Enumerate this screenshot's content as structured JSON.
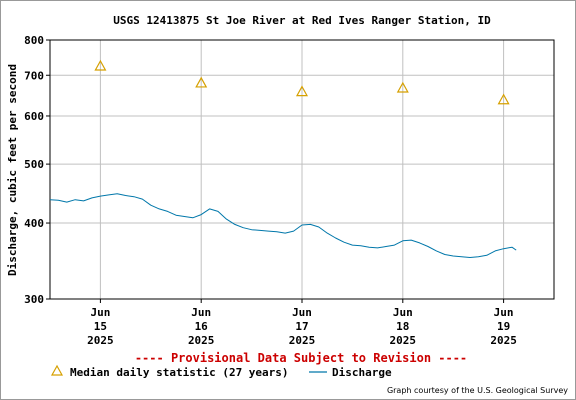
{
  "chart_data": {
    "type": "line",
    "title": "USGS 12413875 St Joe River at Red Ives Ranger Station, ID",
    "ylabel": "Discharge, cubic feet per second",
    "y_scale": "log",
    "ylim": [
      300,
      800
    ],
    "y_ticks": [
      {
        "value": 300,
        "label": "300"
      },
      {
        "value": 400,
        "label": "400"
      },
      {
        "value": 500,
        "label": "500"
      },
      {
        "value": 600,
        "label": "600"
      },
      {
        "value": 700,
        "label": "700"
      },
      {
        "value": 800,
        "label": "800"
      }
    ],
    "xlim": [
      "2025-06-14T12:00",
      "2025-06-19T12:00"
    ],
    "x_ticks": [
      {
        "value": "2025-06-15T00:00",
        "label_month": "Jun",
        "label_day": "15",
        "label_year": "2025"
      },
      {
        "value": "2025-06-16T00:00",
        "label_month": "Jun",
        "label_day": "16",
        "label_year": "2025"
      },
      {
        "value": "2025-06-17T00:00",
        "label_month": "Jun",
        "label_day": "17",
        "label_year": "2025"
      },
      {
        "value": "2025-06-18T00:00",
        "label_month": "Jun",
        "label_day": "18",
        "label_year": "2025"
      },
      {
        "value": "2025-06-19T00:00",
        "label_month": "Jun",
        "label_day": "19",
        "label_year": "2025"
      }
    ],
    "grid": true,
    "series": [
      {
        "name": "Discharge",
        "color": "#0077aa",
        "points": [
          {
            "x": "2025-06-14T12:00",
            "y": 437
          },
          {
            "x": "2025-06-14T14:00",
            "y": 436
          },
          {
            "x": "2025-06-14T16:00",
            "y": 433
          },
          {
            "x": "2025-06-14T18:00",
            "y": 437
          },
          {
            "x": "2025-06-14T20:00",
            "y": 435
          },
          {
            "x": "2025-06-14T22:00",
            "y": 440
          },
          {
            "x": "2025-06-15T00:00",
            "y": 443
          },
          {
            "x": "2025-06-15T02:00",
            "y": 445
          },
          {
            "x": "2025-06-15T04:00",
            "y": 447
          },
          {
            "x": "2025-06-15T06:00",
            "y": 444
          },
          {
            "x": "2025-06-15T08:00",
            "y": 442
          },
          {
            "x": "2025-06-15T10:00",
            "y": 438
          },
          {
            "x": "2025-06-15T12:00",
            "y": 428
          },
          {
            "x": "2025-06-15T14:00",
            "y": 422
          },
          {
            "x": "2025-06-15T16:00",
            "y": 418
          },
          {
            "x": "2025-06-15T18:00",
            "y": 412
          },
          {
            "x": "2025-06-15T20:00",
            "y": 410
          },
          {
            "x": "2025-06-15T22:00",
            "y": 408
          },
          {
            "x": "2025-06-16T00:00",
            "y": 413
          },
          {
            "x": "2025-06-16T02:00",
            "y": 422
          },
          {
            "x": "2025-06-16T04:00",
            "y": 418
          },
          {
            "x": "2025-06-16T06:00",
            "y": 406
          },
          {
            "x": "2025-06-16T08:00",
            "y": 398
          },
          {
            "x": "2025-06-16T10:00",
            "y": 393
          },
          {
            "x": "2025-06-16T12:00",
            "y": 390
          },
          {
            "x": "2025-06-16T14:00",
            "y": 389
          },
          {
            "x": "2025-06-16T16:00",
            "y": 388
          },
          {
            "x": "2025-06-16T18:00",
            "y": 387
          },
          {
            "x": "2025-06-16T20:00",
            "y": 385
          },
          {
            "x": "2025-06-16T22:00",
            "y": 388
          },
          {
            "x": "2025-06-17T00:00",
            "y": 397
          },
          {
            "x": "2025-06-17T02:00",
            "y": 398
          },
          {
            "x": "2025-06-17T04:00",
            "y": 394
          },
          {
            "x": "2025-06-17T06:00",
            "y": 385
          },
          {
            "x": "2025-06-17T08:00",
            "y": 378
          },
          {
            "x": "2025-06-17T10:00",
            "y": 372
          },
          {
            "x": "2025-06-17T12:00",
            "y": 368
          },
          {
            "x": "2025-06-17T14:00",
            "y": 367
          },
          {
            "x": "2025-06-17T16:00",
            "y": 365
          },
          {
            "x": "2025-06-17T18:00",
            "y": 364
          },
          {
            "x": "2025-06-17T20:00",
            "y": 366
          },
          {
            "x": "2025-06-17T22:00",
            "y": 368
          },
          {
            "x": "2025-06-18T00:00",
            "y": 374
          },
          {
            "x": "2025-06-18T02:00",
            "y": 375
          },
          {
            "x": "2025-06-18T04:00",
            "y": 371
          },
          {
            "x": "2025-06-18T06:00",
            "y": 366
          },
          {
            "x": "2025-06-18T08:00",
            "y": 360
          },
          {
            "x": "2025-06-18T10:00",
            "y": 355
          },
          {
            "x": "2025-06-18T12:00",
            "y": 353
          },
          {
            "x": "2025-06-18T14:00",
            "y": 352
          },
          {
            "x": "2025-06-18T16:00",
            "y": 351
          },
          {
            "x": "2025-06-18T18:00",
            "y": 352
          },
          {
            "x": "2025-06-18T20:00",
            "y": 354
          },
          {
            "x": "2025-06-18T22:00",
            "y": 360
          },
          {
            "x": "2025-06-19T00:00",
            "y": 363
          },
          {
            "x": "2025-06-19T02:00",
            "y": 365
          },
          {
            "x": "2025-06-19T03:00",
            "y": 361
          }
        ]
      },
      {
        "name": "Median daily statistic (27 years)",
        "color": "#d6a000",
        "marker": "triangle",
        "points": [
          {
            "x": "2025-06-15T00:00",
            "y": 725
          },
          {
            "x": "2025-06-16T00:00",
            "y": 680
          },
          {
            "x": "2025-06-17T00:00",
            "y": 658
          },
          {
            "x": "2025-06-18T00:00",
            "y": 667
          },
          {
            "x": "2025-06-19T00:00",
            "y": 638
          }
        ]
      }
    ],
    "provisional_notice": "---- Provisional Data Subject to Revision ----",
    "legend": [
      {
        "label": "Median daily statistic (27 years)",
        "icon": "triangle-icon"
      },
      {
        "label": "Discharge",
        "icon": "line-icon"
      }
    ],
    "legend_position": "bottom",
    "credit": "Graph courtesy of the U.S. Geological Survey"
  }
}
